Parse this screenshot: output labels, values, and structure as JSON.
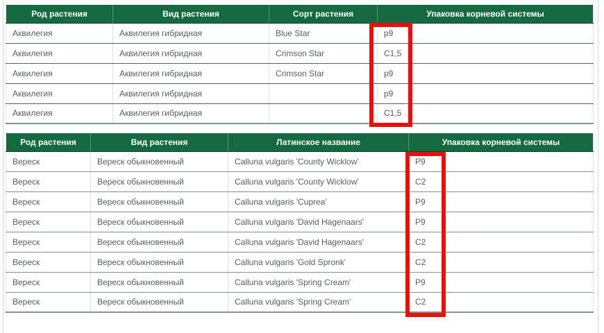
{
  "colors": {
    "header_bg": "#15693f",
    "header_text": "#ffffff",
    "highlight": "#e8100c",
    "cell_text": "#585e5a",
    "row_border_top_table": "#4c685a",
    "row_border_bottom_table": "#7e978a"
  },
  "table_varieties": {
    "columns": [
      "Род растения",
      "Вид растения",
      "Сорт растения",
      "Упаковка корневой системы"
    ],
    "rows": [
      {
        "genus": "Аквилегия",
        "species": "Аквилегия гибридная",
        "variety": "Blue Star",
        "packaging": "p9"
      },
      {
        "genus": "Аквилегия",
        "species": "Аквилегия гибридная",
        "variety": "Crimson Star",
        "packaging": "C1,5"
      },
      {
        "genus": "Аквилегия",
        "species": "Аквилегия гибридная",
        "variety": "Crimson Star",
        "packaging": "p9"
      },
      {
        "genus": "Аквилегия",
        "species": "Аквилегия гибридная",
        "variety": "",
        "packaging": "p9"
      },
      {
        "genus": "Аквилегия",
        "species": "Аквилегия гибридная",
        "variety": "",
        "packaging": "C1,5"
      }
    ]
  },
  "table_latin": {
    "columns": [
      "Род растения",
      "Вид растения",
      "Латинское название",
      "Упаковка корневой системы"
    ],
    "rows": [
      {
        "genus": "Вереск",
        "species": "Вереск обыкновенный",
        "latin": "Calluna vulgaris 'County Wicklow'",
        "packaging": "P9"
      },
      {
        "genus": "Вереск",
        "species": "Вереск обыкновенный",
        "latin": "Calluna vulgaris 'County Wicklow'",
        "packaging": "C2"
      },
      {
        "genus": "Вереск",
        "species": "Вереск обыкновенный",
        "latin": "Calluna vulgaris 'Cuprea'",
        "packaging": "P9"
      },
      {
        "genus": "Вереск",
        "species": "Вереск обыкновенный",
        "latin": "Calluna vulgaris 'David Hagenaars'",
        "packaging": "P9"
      },
      {
        "genus": "Вереск",
        "species": "Вереск обыкновенный",
        "latin": "Calluna vulgaris 'David Hagenaars'",
        "packaging": "C2"
      },
      {
        "genus": "Вереск",
        "species": "Вереск обыкновенный",
        "latin": "Calluna vulgaris 'Gold Spronk'",
        "packaging": "C2"
      },
      {
        "genus": "Вереск",
        "species": "Вереск обыкновенный",
        "latin": "Calluna vulgaris 'Spring Cream'",
        "packaging": "P9"
      },
      {
        "genus": "Вереск",
        "species": "Вереск обыкновенный",
        "latin": "Calluna vulgaris 'Spring Cream'",
        "packaging": "C2"
      }
    ]
  },
  "annotations": {
    "highlight_color": "#e8100c",
    "highlighted_columns": [
      "packaging-top-table",
      "packaging-bottom-table"
    ]
  }
}
